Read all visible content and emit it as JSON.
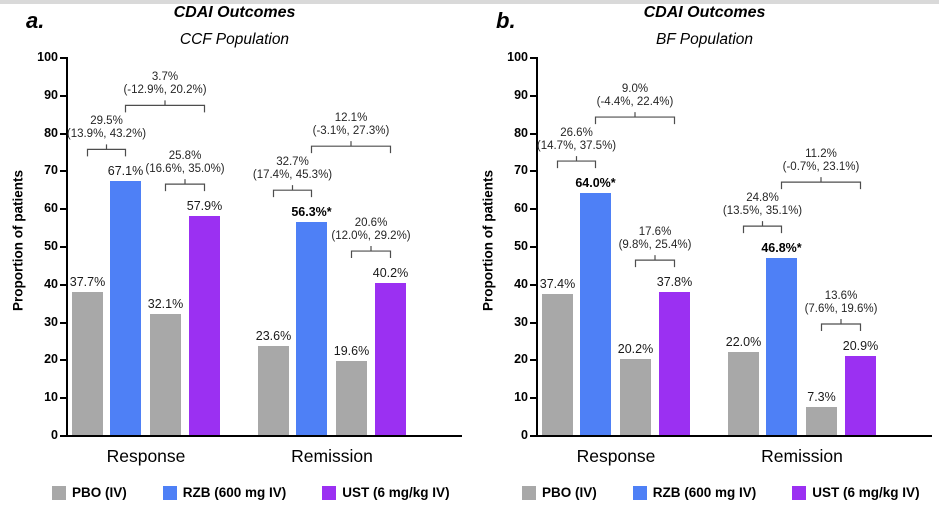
{
  "colors": {
    "pbo": "#A8A8A8",
    "rzb": "#4E80F6",
    "ust": "#9B30F2",
    "axis": "#000000",
    "bracket": "#4D4D4D"
  },
  "legend": [
    {
      "key": "pbo",
      "label": "PBO (IV)"
    },
    {
      "key": "rzb",
      "label": "RZB (600 mg IV)"
    },
    {
      "key": "ust",
      "label": "UST (6 mg/kg IV)"
    }
  ],
  "chart_data": [
    {
      "type": "bar",
      "panel_letter": "a.",
      "title": "CDAI Outcomes",
      "subtitle": "CCF Population",
      "ylabel": "Proportion of patients",
      "ylim": [
        0,
        100
      ],
      "yticks": [
        0,
        10,
        20,
        30,
        40,
        50,
        60,
        70,
        80,
        90,
        100
      ],
      "categories": [
        "Response",
        "Remission"
      ],
      "groups": [
        {
          "category": "Response",
          "bars": [
            {
              "series": "pbo",
              "value": 37.7,
              "label": "37.7%",
              "bold": false
            },
            {
              "series": "rzb",
              "value": 67.1,
              "label": "67.1%",
              "bold": false
            },
            {
              "series": "pbo",
              "value": 32.1,
              "label": "32.1%",
              "bold": false
            },
            {
              "series": "ust",
              "value": 57.9,
              "label": "57.9%",
              "bold": false
            }
          ],
          "comparisons": [
            {
              "span": [
                0,
                1
              ],
              "diff": "29.5%",
              "ci": "(13.9%, 43.2%)"
            },
            {
              "span": [
                2,
                3
              ],
              "diff": "25.8%",
              "ci": "(16.6%, 35.0%)"
            },
            {
              "span": [
                1,
                3
              ],
              "diff": "3.7%",
              "ci": "(-12.9%, 20.2%)",
              "top_level": true
            }
          ]
        },
        {
          "category": "Remission",
          "bars": [
            {
              "series": "pbo",
              "value": 23.6,
              "label": "23.6%",
              "bold": false
            },
            {
              "series": "rzb",
              "value": 56.3,
              "label": "56.3%*",
              "bold": true
            },
            {
              "series": "pbo",
              "value": 19.6,
              "label": "19.6%",
              "bold": false
            },
            {
              "series": "ust",
              "value": 40.2,
              "label": "40.2%",
              "bold": false
            }
          ],
          "comparisons": [
            {
              "span": [
                0,
                1
              ],
              "diff": "32.7%",
              "ci": "(17.4%, 45.3%)"
            },
            {
              "span": [
                2,
                3
              ],
              "diff": "20.6%",
              "ci": "(12.0%, 29.2%)"
            },
            {
              "span": [
                1,
                3
              ],
              "diff": "12.1%",
              "ci": "(-3.1%, 27.3%)",
              "top_level": true
            }
          ]
        }
      ]
    },
    {
      "type": "bar",
      "panel_letter": "b.",
      "title": "CDAI Outcomes",
      "subtitle": "BF Population",
      "ylabel": "Proportion of patients",
      "ylim": [
        0,
        100
      ],
      "yticks": [
        0,
        10,
        20,
        30,
        40,
        50,
        60,
        70,
        80,
        90,
        100
      ],
      "categories": [
        "Response",
        "Remission"
      ],
      "groups": [
        {
          "category": "Response",
          "bars": [
            {
              "series": "pbo",
              "value": 37.4,
              "label": "37.4%",
              "bold": false
            },
            {
              "series": "rzb",
              "value": 64.0,
              "label": "64.0%*",
              "bold": true
            },
            {
              "series": "pbo",
              "value": 20.2,
              "label": "20.2%",
              "bold": false
            },
            {
              "series": "ust",
              "value": 37.8,
              "label": "37.8%",
              "bold": false
            }
          ],
          "comparisons": [
            {
              "span": [
                0,
                1
              ],
              "diff": "26.6%",
              "ci": "(14.7%, 37.5%)"
            },
            {
              "span": [
                2,
                3
              ],
              "diff": "17.6%",
              "ci": "(9.8%, 25.4%)"
            },
            {
              "span": [
                1,
                3
              ],
              "diff": "9.0%",
              "ci": "(-4.4%, 22.4%)",
              "top_level": true
            }
          ]
        },
        {
          "category": "Remission",
          "bars": [
            {
              "series": "pbo",
              "value": 22.0,
              "label": "22.0%",
              "bold": false
            },
            {
              "series": "rzb",
              "value": 46.8,
              "label": "46.8%*",
              "bold": true
            },
            {
              "series": "pbo",
              "value": 7.3,
              "label": "7.3%",
              "bold": false
            },
            {
              "series": "ust",
              "value": 20.9,
              "label": "20.9%",
              "bold": false
            }
          ],
          "comparisons": [
            {
              "span": [
                0,
                1
              ],
              "diff": "24.8%",
              "ci": "(13.5%, 35.1%)"
            },
            {
              "span": [
                2,
                3
              ],
              "diff": "13.6%",
              "ci": "(7.6%, 19.6%)"
            },
            {
              "span": [
                1,
                3
              ],
              "diff": "11.2%",
              "ci": "(-0.7%, 23.1%)",
              "top_level": true
            }
          ]
        }
      ]
    }
  ]
}
